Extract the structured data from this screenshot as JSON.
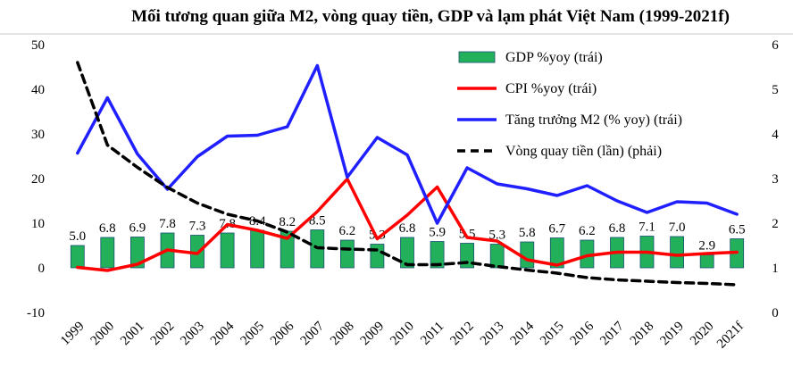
{
  "chart_data": {
    "type": "bar",
    "title": "Mối tương quan giữa M2, vòng quay tiền, GDP và lạm phát Việt Nam (1999-2021f)",
    "categories": [
      "1999",
      "2000",
      "2001",
      "2002",
      "2003",
      "2004",
      "2005",
      "2006",
      "2007",
      "2008",
      "2009",
      "2010",
      "2011",
      "2012",
      "2013",
      "2014",
      "2015",
      "2016",
      "2017",
      "2018",
      "2019",
      "2020",
      "2021f"
    ],
    "y_left": {
      "min": -10,
      "max": 50,
      "step": 10,
      "ticks": [
        "-10",
        "0",
        "10",
        "20",
        "30",
        "40",
        "50"
      ]
    },
    "y_right": {
      "min": 0,
      "max": 6,
      "step": 1,
      "ticks": [
        "0",
        "1",
        "2",
        "3",
        "4",
        "5",
        "6"
      ]
    },
    "grid": false,
    "legend_position": "top-right",
    "series": [
      {
        "name": "GDP %yoy (trái)",
        "kind": "bar",
        "axis": "left",
        "color": "#22b05a",
        "edge_color": "#1b4f72",
        "values": [
          5.0,
          6.8,
          6.9,
          7.8,
          7.3,
          7.8,
          8.4,
          8.2,
          8.5,
          6.2,
          5.3,
          6.8,
          5.9,
          5.5,
          5.3,
          5.8,
          6.7,
          6.2,
          6.8,
          7.1,
          7.0,
          2.9,
          6.5
        ],
        "labels": [
          "5.0",
          "6.8",
          "6.9",
          "7.8",
          "7.3",
          "7.8",
          "8.4",
          "8.2",
          "8.5",
          "6.2",
          "5.3",
          "6.8",
          "5.9",
          "5.5",
          "5.3",
          "5.8",
          "6.7",
          "6.2",
          "6.8",
          "7.1",
          "7.0",
          "2.9",
          "6.5"
        ]
      },
      {
        "name": "CPI %yoy (trái)",
        "kind": "line",
        "axis": "left",
        "color": "#ff0000",
        "values": [
          0.1,
          -0.6,
          0.8,
          4.0,
          3.2,
          9.7,
          8.4,
          6.6,
          12.6,
          19.9,
          6.5,
          11.8,
          18.1,
          6.8,
          6.0,
          1.8,
          0.6,
          2.7,
          3.5,
          3.5,
          2.8,
          3.2,
          3.5
        ]
      },
      {
        "name": "Tăng trưởng M2 (% yoy) (trái)",
        "kind": "line",
        "axis": "left",
        "color": "#1f1fff",
        "values": [
          25.7,
          38.1,
          25.5,
          17.6,
          24.9,
          29.5,
          29.7,
          31.6,
          45.3,
          20.3,
          29.2,
          25.3,
          10.0,
          22.4,
          18.8,
          17.7,
          16.2,
          18.4,
          15.0,
          12.4,
          14.8,
          14.5,
          12.0
        ]
      },
      {
        "name": "Vòng quay tiền (lần) (phải)",
        "kind": "line",
        "axis": "right",
        "style": "dashed",
        "color": "#000000",
        "values": [
          5.6,
          3.75,
          3.25,
          2.8,
          2.45,
          2.2,
          2.05,
          1.8,
          1.45,
          1.42,
          1.4,
          1.07,
          1.07,
          1.12,
          1.03,
          0.95,
          0.88,
          0.78,
          0.73,
          0.7,
          0.67,
          0.65,
          0.62
        ]
      }
    ]
  }
}
